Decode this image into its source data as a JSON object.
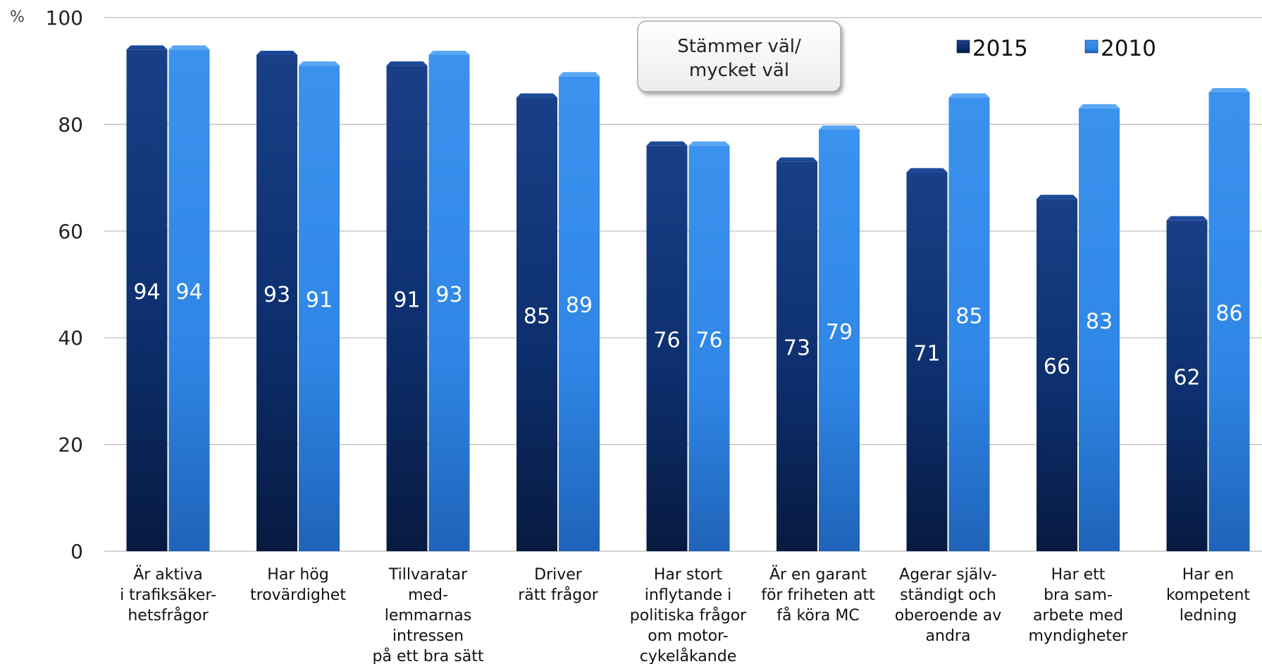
{
  "chart_data": {
    "type": "bar",
    "y_unit": "%",
    "ylim": [
      0,
      100
    ],
    "yticks": [
      0,
      20,
      40,
      60,
      80,
      100
    ],
    "grid": true,
    "legend_position": "top-right",
    "annotation": [
      "Stämmer väl/",
      "mycket väl"
    ],
    "categories": [
      [
        "Är aktiva",
        "i trafiksäker-",
        "hetsfrågor"
      ],
      [
        "Har hög",
        "trovärdighet"
      ],
      [
        "Tillvaratar",
        "med-",
        "lemmarnas",
        "intressen",
        "på ett bra sätt"
      ],
      [
        "Driver",
        "rätt frågor"
      ],
      [
        "Har stort",
        "inflytande i",
        "politiska frågor",
        "om motor-",
        "cykelåkande"
      ],
      [
        "Är en garant",
        "för friheten att",
        "få köra MC"
      ],
      [
        "Agerar själv-",
        "ständigt och",
        "oberoende av",
        "andra"
      ],
      [
        "Har ett",
        "bra sam-",
        "arbete med",
        "myndigheter"
      ],
      [
        "Har en",
        "kompetent",
        "ledning"
      ]
    ],
    "series": [
      {
        "name": "2015",
        "color": "#0d2f6e",
        "values": [
          94,
          93,
          91,
          85,
          76,
          73,
          71,
          66,
          62
        ]
      },
      {
        "name": "2010",
        "color": "#2f86e6",
        "values": [
          94,
          91,
          93,
          89,
          76,
          79,
          85,
          83,
          86
        ]
      }
    ]
  }
}
